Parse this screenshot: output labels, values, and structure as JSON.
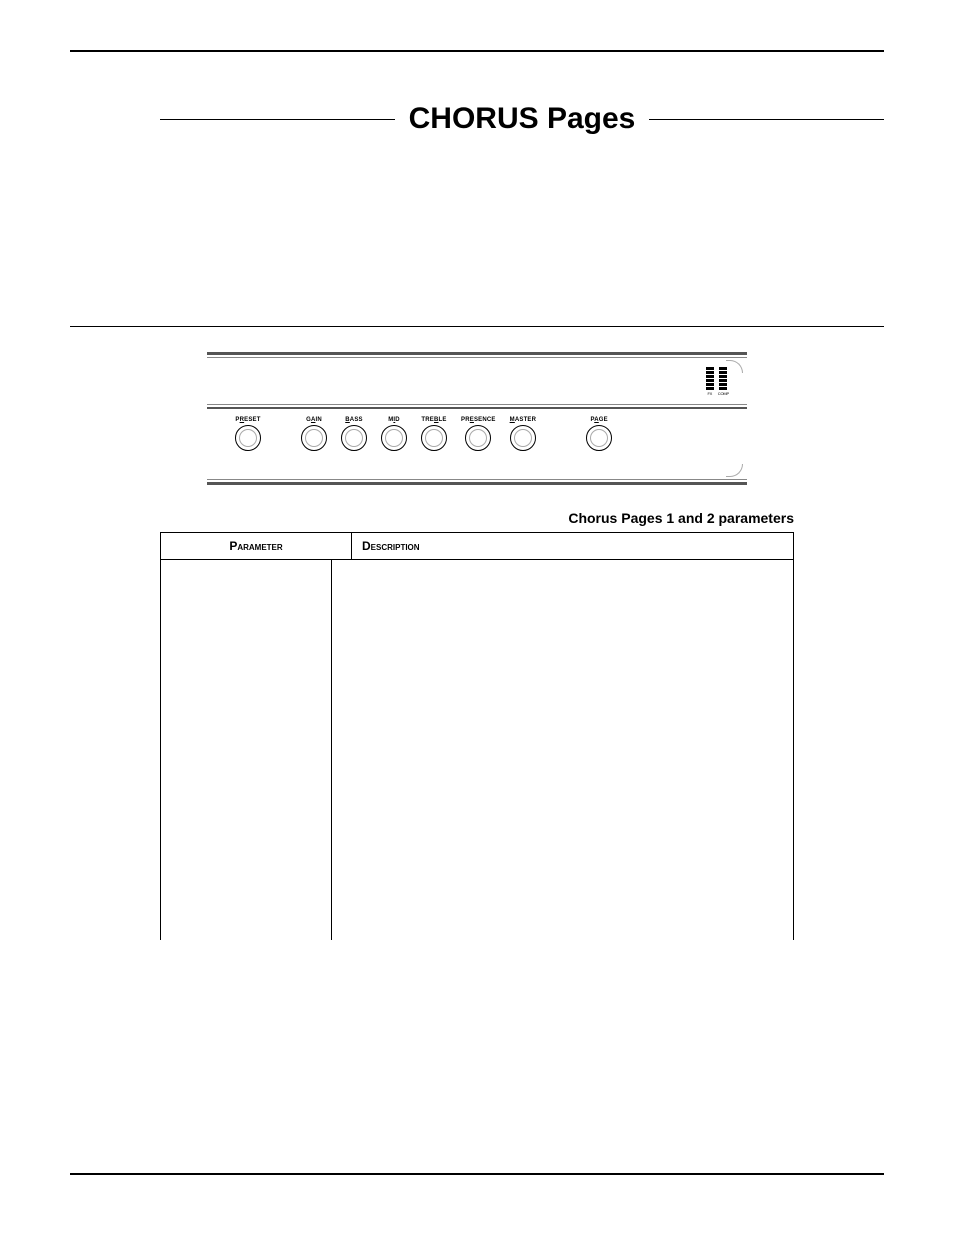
{
  "title": "CHORUS Pages",
  "table_caption": "Chorus Pages 1 and 2 parameters",
  "table_headers": {
    "param": "Parameter",
    "desc": "Description"
  },
  "panel": {
    "meters": [
      {
        "label": "FX"
      },
      {
        "label": "COMP"
      }
    ],
    "knobs": {
      "preset": {
        "pre": "P",
        "ul": "R",
        "post": "ESET"
      },
      "gain": {
        "pre": "G",
        "ul": "A",
        "post": "IN"
      },
      "bass": {
        "pre": "",
        "ul": "B",
        "post": "ASS"
      },
      "mid": {
        "pre": "M",
        "ul": "I",
        "post": "D"
      },
      "treble": {
        "pre": "TRE",
        "ul": "B",
        "post": "LE"
      },
      "presence": {
        "pre": "PR",
        "ul": "E",
        "post": "SENCE"
      },
      "master": {
        "pre": "",
        "ul": "M",
        "post": "ASTER"
      },
      "page": {
        "pre": "P",
        "ul": "A",
        "post": "GE"
      }
    }
  }
}
